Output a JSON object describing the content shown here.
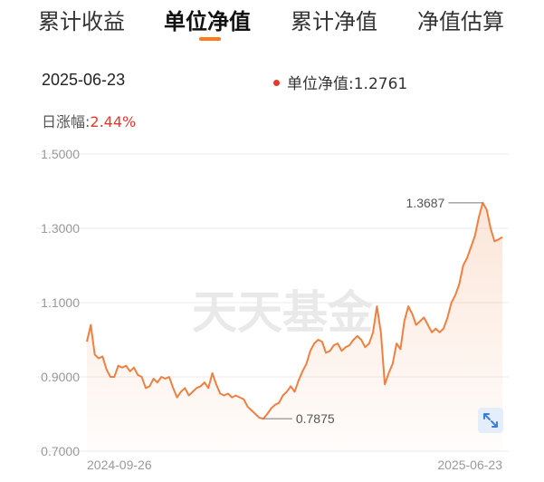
{
  "tabs": [
    {
      "label": "累计收益",
      "active": false
    },
    {
      "label": "单位净值",
      "active": true
    },
    {
      "label": "累计净值",
      "active": false
    },
    {
      "label": "净值估算",
      "active": false
    }
  ],
  "info": {
    "date": "2025-06-23",
    "nav_label": "单位净值:",
    "nav_value": "1.2761",
    "change_label": "日涨幅:",
    "change_value": "2.44%"
  },
  "watermark": "天天基金",
  "colors": {
    "accent": "#ff7a1e",
    "line": "#f08040",
    "up": "#e8362b",
    "expand_bg": "#e4eefb"
  },
  "expand_icon": "expand-arrows-icon",
  "chart_data": {
    "type": "line",
    "ylim": [
      0.7,
      1.5
    ],
    "y_ticks": [
      "1.5000",
      "1.3000",
      "1.1000",
      "0.9000",
      "0.7000"
    ],
    "x_labels": [
      "2024-09-26",
      "2025-06-23"
    ],
    "annotations": [
      {
        "label": "1.3687",
        "kind": "max",
        "value": 1.3687
      },
      {
        "label": "0.7875",
        "kind": "min",
        "value": 0.7875
      }
    ],
    "series": [
      {
        "values": [
          0.995,
          1.04,
          0.96,
          0.95,
          0.955,
          0.92,
          0.9,
          0.9,
          0.93,
          0.925,
          0.93,
          0.915,
          0.925,
          0.905,
          0.9,
          0.87,
          0.875,
          0.895,
          0.885,
          0.9,
          0.895,
          0.9,
          0.87,
          0.845,
          0.86,
          0.87,
          0.85,
          0.86,
          0.87,
          0.875,
          0.885,
          0.87,
          0.91,
          0.88,
          0.855,
          0.85,
          0.855,
          0.845,
          0.85,
          0.845,
          0.84,
          0.82,
          0.81,
          0.8,
          0.79,
          0.7875,
          0.8,
          0.815,
          0.825,
          0.83,
          0.85,
          0.86,
          0.875,
          0.86,
          0.89,
          0.915,
          0.935,
          0.97,
          0.99,
          1.0,
          0.995,
          0.965,
          0.97,
          0.985,
          0.99,
          0.97,
          0.98,
          0.985,
          1.0,
          1.01,
          1.0,
          0.98,
          0.99,
          1.02,
          1.09,
          1.02,
          0.88,
          0.91,
          0.935,
          0.99,
          0.975,
          1.05,
          1.09,
          1.07,
          1.04,
          1.05,
          1.06,
          1.04,
          1.02,
          1.03,
          1.02,
          1.03,
          1.06,
          1.1,
          1.12,
          1.15,
          1.2,
          1.22,
          1.25,
          1.28,
          1.33,
          1.3687,
          1.35,
          1.3,
          1.265,
          1.27,
          1.2761
        ]
      }
    ]
  }
}
